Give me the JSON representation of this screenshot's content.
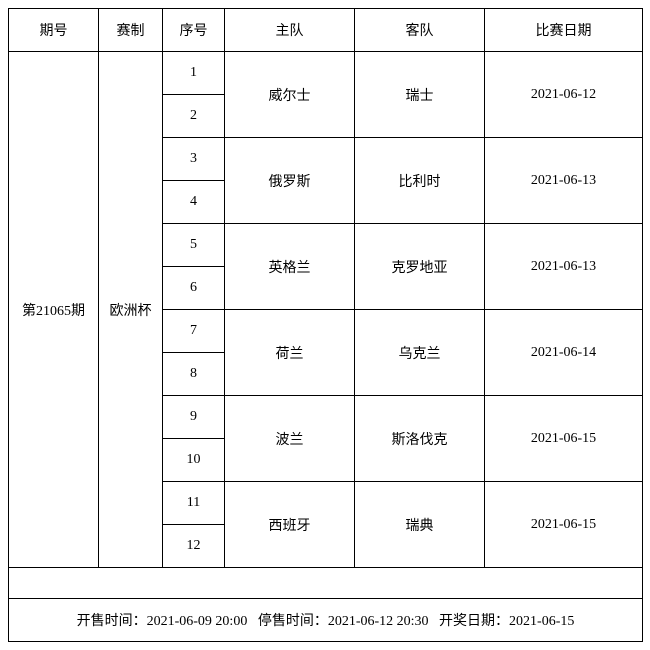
{
  "headers": {
    "period": "期号",
    "format": "赛制",
    "sequence": "序号",
    "home": "主队",
    "away": "客队",
    "date": "比赛日期"
  },
  "period": "第21065期",
  "format": "欧洲杯",
  "matches": [
    {
      "seq1": "1",
      "seq2": "2",
      "home": "威尔士",
      "away": "瑞士",
      "date": "2021-06-12"
    },
    {
      "seq1": "3",
      "seq2": "4",
      "home": "俄罗斯",
      "away": "比利时",
      "date": "2021-06-13"
    },
    {
      "seq1": "5",
      "seq2": "6",
      "home": "英格兰",
      "away": "克罗地亚",
      "date": "2021-06-13"
    },
    {
      "seq1": "7",
      "seq2": "8",
      "home": "荷兰",
      "away": "乌克兰",
      "date": "2021-06-14"
    },
    {
      "seq1": "9",
      "seq2": "10",
      "home": "波兰",
      "away": "斯洛伐克",
      "date": "2021-06-15"
    },
    {
      "seq1": "11",
      "seq2": "12",
      "home": "西班牙",
      "away": "瑞典",
      "date": "2021-06-15"
    }
  ],
  "footer": {
    "sale_start_label": "开售时间：",
    "sale_start": "2021-06-09 20:00",
    "sale_stop_label": "停售时间：",
    "sale_stop": "2021-06-12 20:30",
    "draw_label": "开奖日期：",
    "draw": "2021-06-15"
  }
}
